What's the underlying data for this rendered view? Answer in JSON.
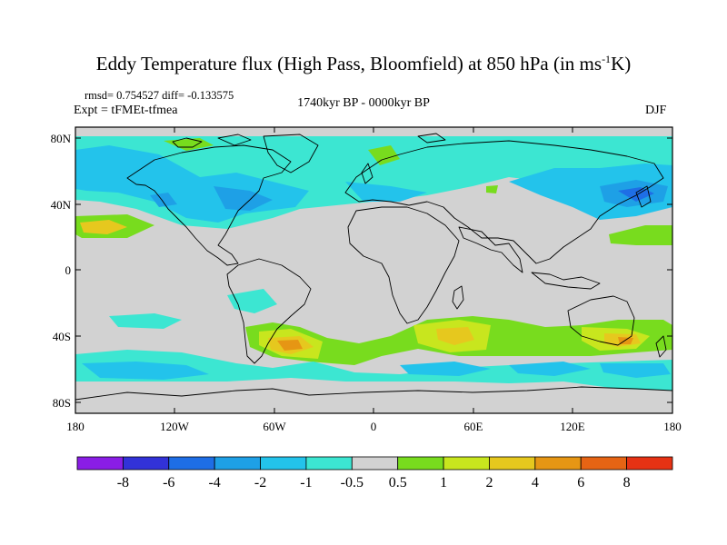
{
  "title": {
    "main": "Eddy Temperature flux (High Pass, Bloomfield) at 850 hPa (in ms",
    "sup": "-1",
    "tail": "K)"
  },
  "stats": "rmsd= 0.754527 diff= -0.133575",
  "experiment": "Expt = tFMEt-tfmea",
  "period": "1740kyr BP - 0000kyr BP",
  "season": "DJF",
  "axes": {
    "lat_ticks": [
      "80N",
      "40N",
      "0",
      "40S",
      "80S"
    ],
    "lon_ticks": [
      "180",
      "120W",
      "60W",
      "0",
      "60E",
      "120E",
      "180"
    ]
  },
  "colorbar": {
    "labels": [
      "-8",
      "-6",
      "-4",
      "-2",
      "-1",
      "-0.5",
      "0.5",
      "1",
      "2",
      "4",
      "6",
      "8"
    ],
    "colors": [
      "#8a1de6",
      "#3232d8",
      "#1e6ee6",
      "#1ea0e6",
      "#23c3eb",
      "#3ce6d2",
      "#d2d2d2",
      "#78dc1e",
      "#c8e61e",
      "#e6c81e",
      "#e69614",
      "#e66414",
      "#e63214"
    ]
  },
  "map": {
    "ocean_color": "#d2d2d2",
    "coast_color": "#000000"
  }
}
